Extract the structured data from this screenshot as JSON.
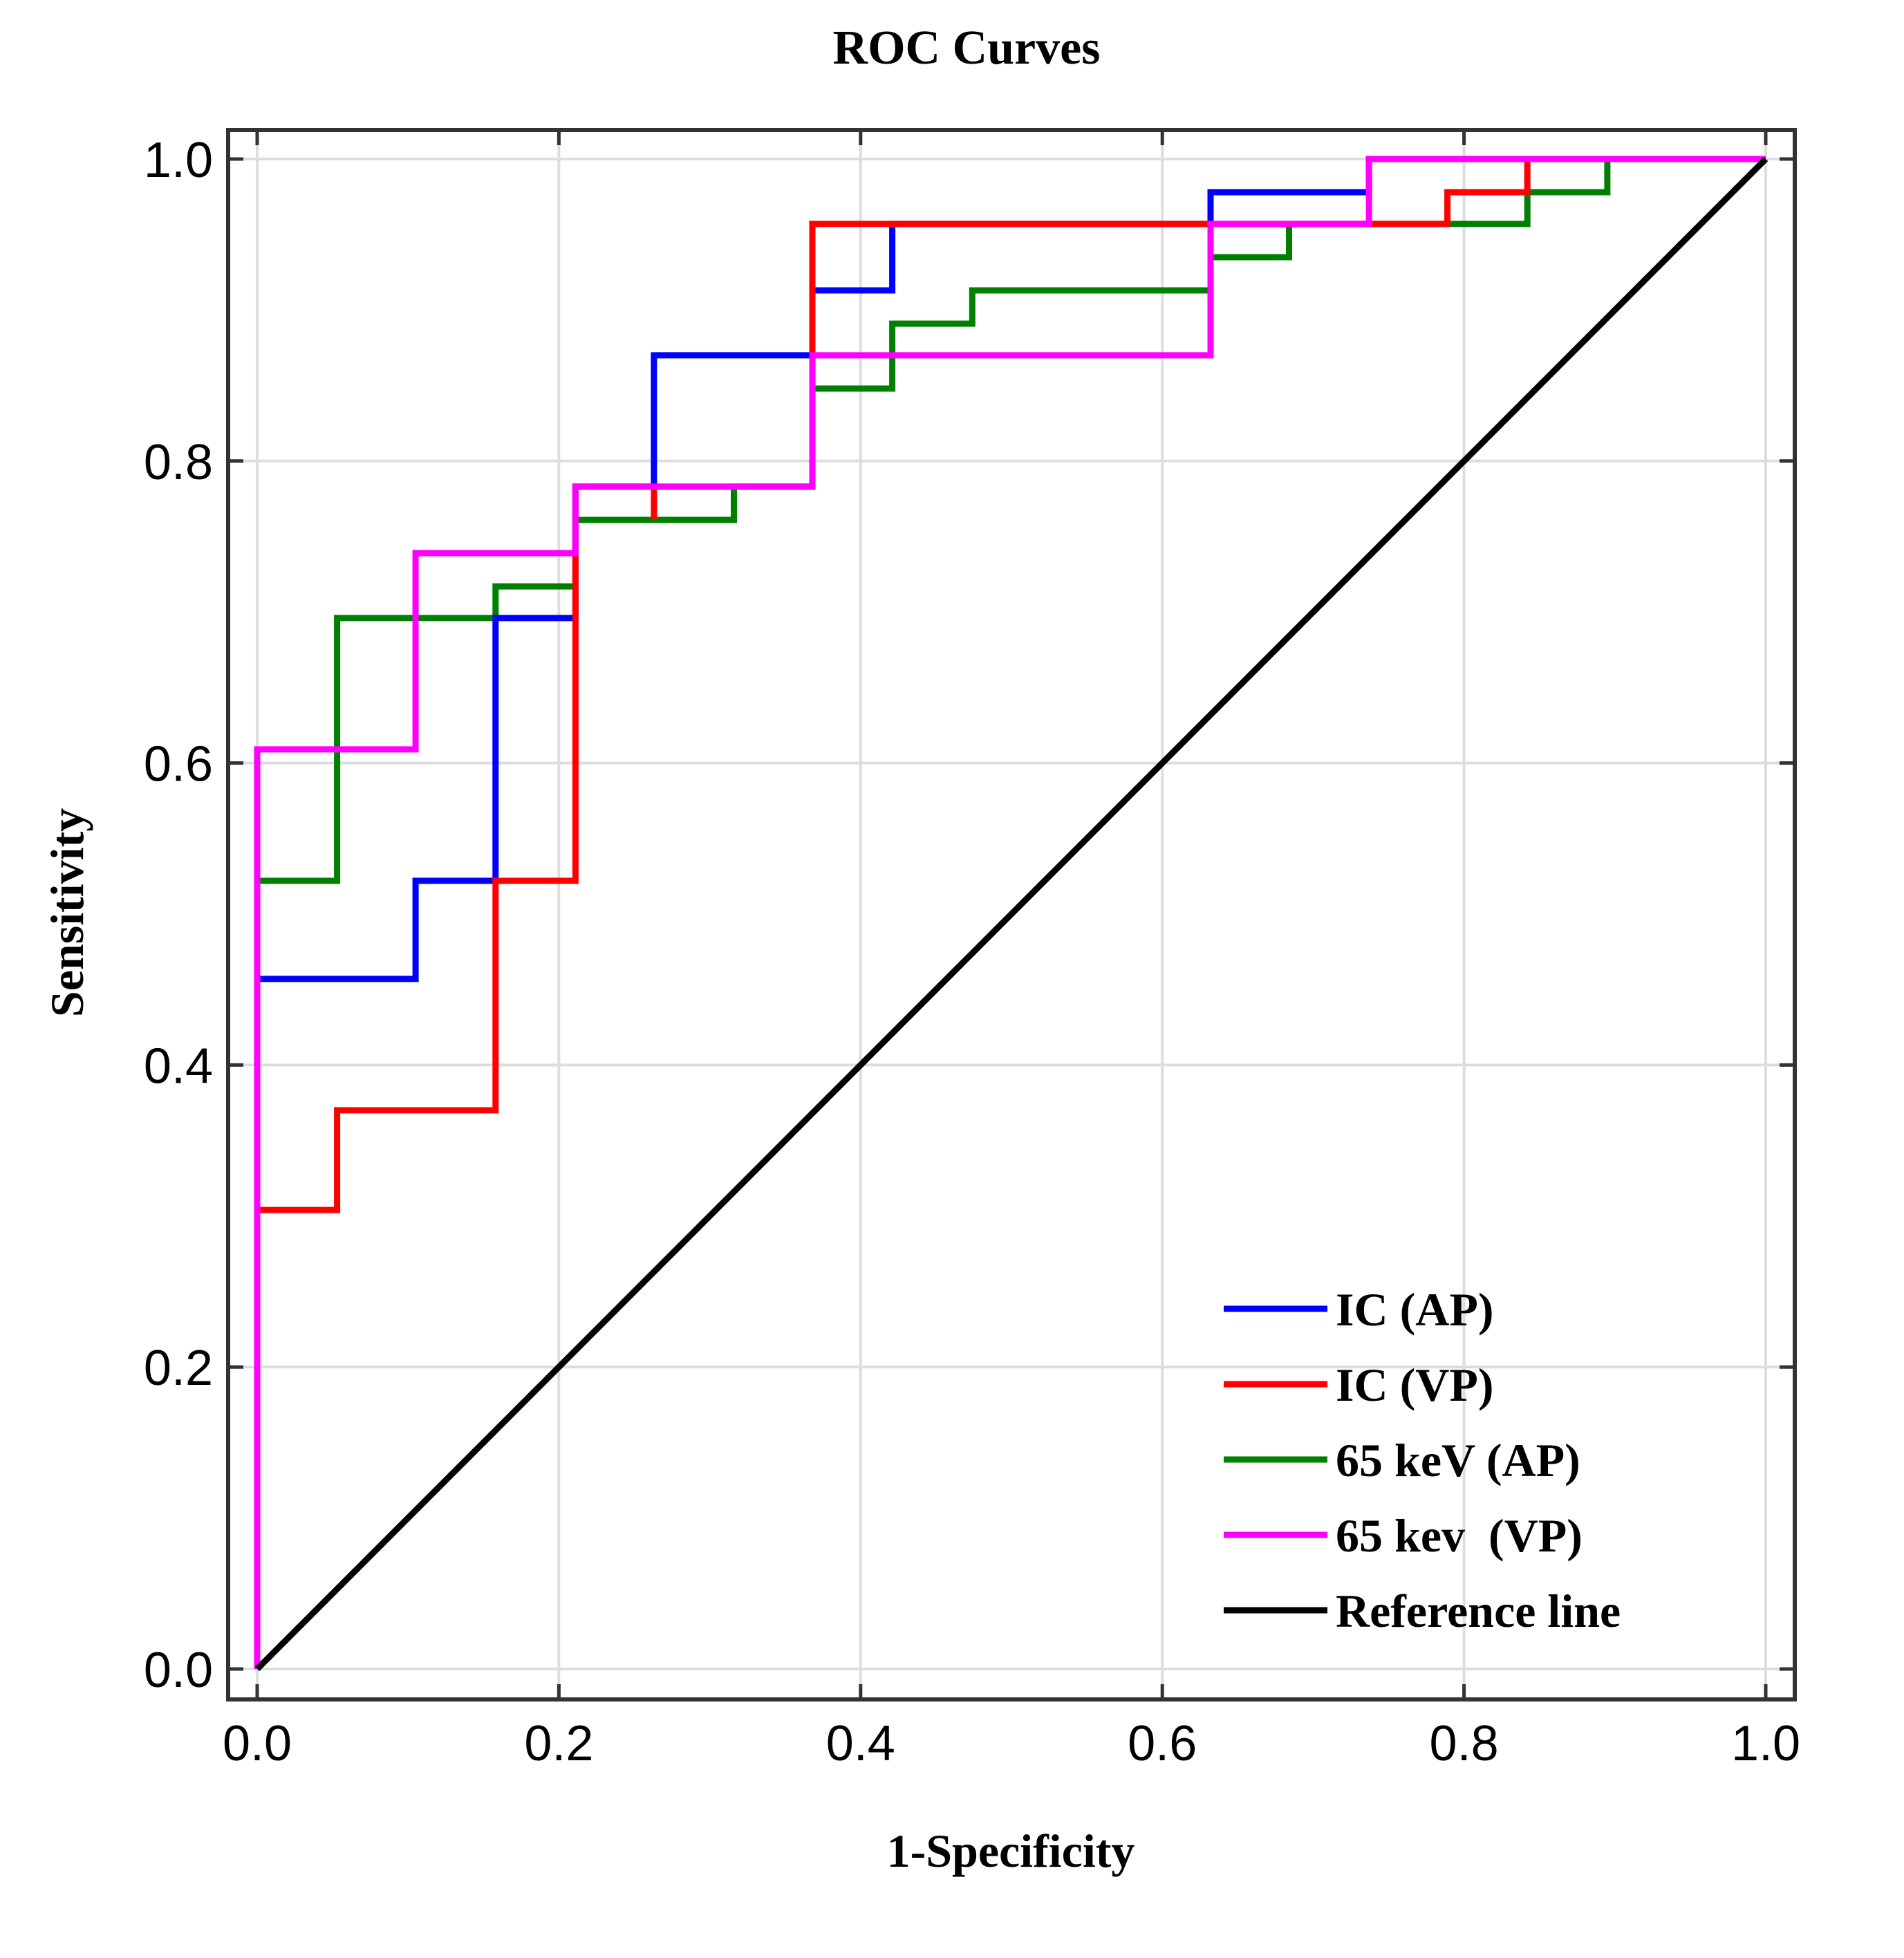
{
  "chart_data": {
    "type": "line",
    "title": "ROC Curves",
    "xlabel": "1-Specificity",
    "ylabel": "Sensitivity",
    "xlim": [
      0,
      1
    ],
    "ylim": [
      0,
      1
    ],
    "grid": true,
    "legend_position": "bottom-right",
    "x_ticks": [
      "0.0",
      "0.2",
      "0.4",
      "0.6",
      "0.8",
      "1.0"
    ],
    "y_ticks": [
      "0.0",
      "0.2",
      "0.4",
      "0.6",
      "0.8",
      "1.0"
    ],
    "series": [
      {
        "name": "IC (AP)",
        "color": "#0000ff",
        "points": [
          [
            0,
            0
          ],
          [
            0,
            0.457
          ],
          [
            0.105,
            0.457
          ],
          [
            0.105,
            0.522
          ],
          [
            0.158,
            0.522
          ],
          [
            0.158,
            0.696
          ],
          [
            0.211,
            0.696
          ],
          [
            0.211,
            0.739
          ],
          [
            0.211,
            0.783
          ],
          [
            0.263,
            0.783
          ],
          [
            0.263,
            0.87
          ],
          [
            0.368,
            0.87
          ],
          [
            0.368,
            0.913
          ],
          [
            0.421,
            0.913
          ],
          [
            0.421,
            0.957
          ],
          [
            0.632,
            0.957
          ],
          [
            0.632,
            0.978
          ],
          [
            0.737,
            0.978
          ],
          [
            0.737,
            1.0
          ],
          [
            1.0,
            1.0
          ]
        ]
      },
      {
        "name": "IC (VP)",
        "color": "#ff0000",
        "points": [
          [
            0,
            0
          ],
          [
            0,
            0.304
          ],
          [
            0.053,
            0.304
          ],
          [
            0.053,
            0.37
          ],
          [
            0.158,
            0.37
          ],
          [
            0.158,
            0.522
          ],
          [
            0.211,
            0.522
          ],
          [
            0.211,
            0.783
          ],
          [
            0.263,
            0.783
          ],
          [
            0.263,
            0.761
          ],
          [
            0.263,
            0.783
          ],
          [
            0.368,
            0.783
          ],
          [
            0.368,
            0.957
          ],
          [
            0.789,
            0.957
          ],
          [
            0.789,
            0.978
          ],
          [
            0.842,
            0.978
          ],
          [
            0.842,
            1.0
          ],
          [
            1.0,
            1.0
          ]
        ]
      },
      {
        "name": "65 keV (AP)",
        "color": "#008000",
        "points": [
          [
            0,
            0
          ],
          [
            0,
            0.522
          ],
          [
            0.053,
            0.522
          ],
          [
            0.053,
            0.696
          ],
          [
            0.158,
            0.696
          ],
          [
            0.158,
            0.717
          ],
          [
            0.211,
            0.717
          ],
          [
            0.211,
            0.761
          ],
          [
            0.316,
            0.761
          ],
          [
            0.316,
            0.783
          ],
          [
            0.368,
            0.783
          ],
          [
            0.368,
            0.848
          ],
          [
            0.421,
            0.848
          ],
          [
            0.421,
            0.891
          ],
          [
            0.474,
            0.891
          ],
          [
            0.474,
            0.913
          ],
          [
            0.632,
            0.913
          ],
          [
            0.632,
            0.935
          ],
          [
            0.684,
            0.935
          ],
          [
            0.684,
            0.957
          ],
          [
            0.842,
            0.957
          ],
          [
            0.842,
            0.978
          ],
          [
            0.895,
            0.978
          ],
          [
            0.895,
            1.0
          ],
          [
            1.0,
            1.0
          ]
        ]
      },
      {
        "name": "65 kev  (VP)",
        "color": "#ff00ff",
        "points": [
          [
            0,
            0
          ],
          [
            0,
            0.609
          ],
          [
            0.105,
            0.609
          ],
          [
            0.105,
            0.739
          ],
          [
            0.211,
            0.739
          ],
          [
            0.211,
            0.783
          ],
          [
            0.368,
            0.783
          ],
          [
            0.368,
            0.87
          ],
          [
            0.632,
            0.87
          ],
          [
            0.632,
            0.957
          ],
          [
            0.737,
            0.957
          ],
          [
            0.737,
            1.0
          ],
          [
            1.0,
            1.0
          ]
        ]
      },
      {
        "name": "Reference line",
        "color": "#000000",
        "points": [
          [
            0,
            0
          ],
          [
            1,
            1
          ]
        ]
      }
    ]
  }
}
